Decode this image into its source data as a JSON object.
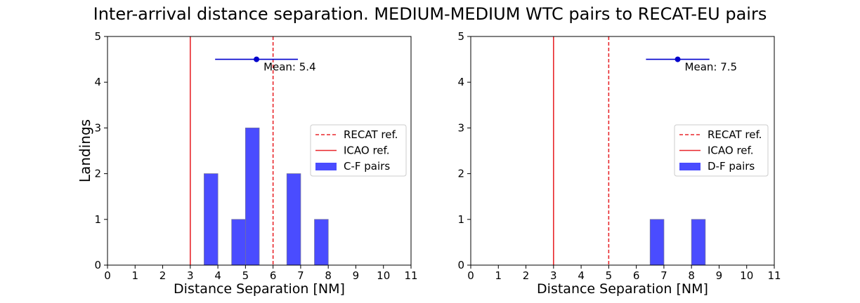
{
  "figure": {
    "title": "Inter-arrival distance separation. MEDIUM-MEDIUM WTC pairs to RECAT-EU pairs"
  },
  "chart_data": [
    {
      "type": "bar",
      "subtype": "histogram",
      "xlabel": "Distance Separation [NM]",
      "ylabel": "Landings",
      "xlim": [
        0,
        11
      ],
      "ylim": [
        0,
        5
      ],
      "xticks": [
        0,
        1,
        2,
        3,
        4,
        5,
        6,
        7,
        8,
        9,
        10,
        11
      ],
      "yticks": [
        0,
        1,
        2,
        3,
        4,
        5
      ],
      "grid": false,
      "legend_position": "center-right",
      "bars": [
        {
          "x0": 3.5,
          "x1": 4.0,
          "count": 2
        },
        {
          "x0": 4.5,
          "x1": 5.0,
          "count": 1
        },
        {
          "x0": 5.0,
          "x1": 5.5,
          "count": 3
        },
        {
          "x0": 6.5,
          "x1": 7.0,
          "count": 2
        },
        {
          "x0": 7.5,
          "x1": 8.0,
          "count": 1
        }
      ],
      "series_name": "C-F pairs",
      "bar_color": "#4a4cff",
      "reference_lines": [
        {
          "name": "RECAT ref.",
          "x": 6,
          "style": "dashed",
          "color": "#e8262b"
        },
        {
          "name": "ICAO ref.",
          "x": 3,
          "style": "solid",
          "color": "#e8262b"
        }
      ],
      "mean": {
        "value": 5.4,
        "y": 4.5,
        "range": [
          3.9,
          6.9
        ],
        "label": "Mean: 5.4",
        "color": "#0000cc"
      }
    },
    {
      "type": "bar",
      "subtype": "histogram",
      "xlabel": "Distance Separation [NM]",
      "ylabel": "",
      "xlim": [
        0,
        11
      ],
      "ylim": [
        0,
        5
      ],
      "xticks": [
        0,
        1,
        2,
        3,
        4,
        5,
        6,
        7,
        8,
        9,
        10,
        11
      ],
      "yticks": [
        0,
        1,
        2,
        3,
        4,
        5
      ],
      "grid": false,
      "legend_position": "center-right",
      "bars": [
        {
          "x0": 6.5,
          "x1": 7.0,
          "count": 1
        },
        {
          "x0": 8.0,
          "x1": 8.5,
          "count": 1
        }
      ],
      "series_name": "D-F pairs",
      "bar_color": "#4a4cff",
      "reference_lines": [
        {
          "name": "RECAT ref.",
          "x": 5,
          "style": "dashed",
          "color": "#e8262b"
        },
        {
          "name": "ICAO ref.",
          "x": 3,
          "style": "solid",
          "color": "#e8262b"
        }
      ],
      "mean": {
        "value": 7.5,
        "y": 4.5,
        "range": [
          6.35,
          8.65
        ],
        "label": "Mean: 7.5",
        "color": "#0000cc"
      }
    }
  ]
}
